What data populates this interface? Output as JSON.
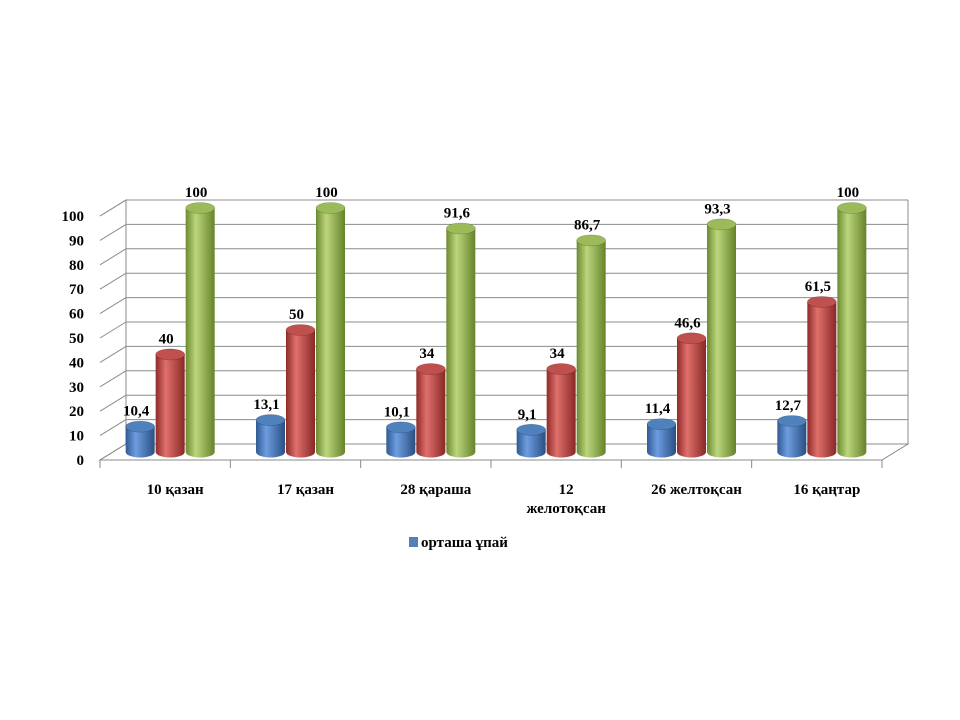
{
  "chart_data": {
    "type": "bar",
    "style": "3d-cylinder",
    "title": "",
    "xlabel": "",
    "ylabel": "",
    "ylim": [
      0,
      100
    ],
    "yticks": [
      0,
      10,
      20,
      30,
      40,
      50,
      60,
      70,
      80,
      90,
      100
    ],
    "grid": true,
    "legend_position": "bottom",
    "categories": [
      [
        "10 қазан"
      ],
      [
        "17 қазан"
      ],
      [
        "28 қараша"
      ],
      [
        "12",
        "желотоқсан"
      ],
      [
        "26 желтоқсан"
      ],
      [
        "16 қаңтар"
      ]
    ],
    "series": [
      {
        "name": "орташа ұпай",
        "color": "#4F81BD",
        "values": [
          10.4,
          13.1,
          10.1,
          9.1,
          11.4,
          12.7
        ],
        "labels": [
          "10,4",
          "13,1",
          "10,1",
          "9,1",
          "11,4",
          "12,7"
        ]
      },
      {
        "color": "#C0504D",
        "values": [
          40,
          50,
          34,
          34,
          46.6,
          61.5
        ],
        "labels": [
          "40",
          "50",
          "34",
          "34",
          "46,6",
          "61,5"
        ]
      },
      {
        "color": "#9BBB59",
        "values": [
          100,
          100,
          91.6,
          86.7,
          93.3,
          100
        ],
        "labels": [
          "100",
          "100",
          "91,6",
          "86,7",
          "93,3",
          "100"
        ]
      }
    ]
  }
}
